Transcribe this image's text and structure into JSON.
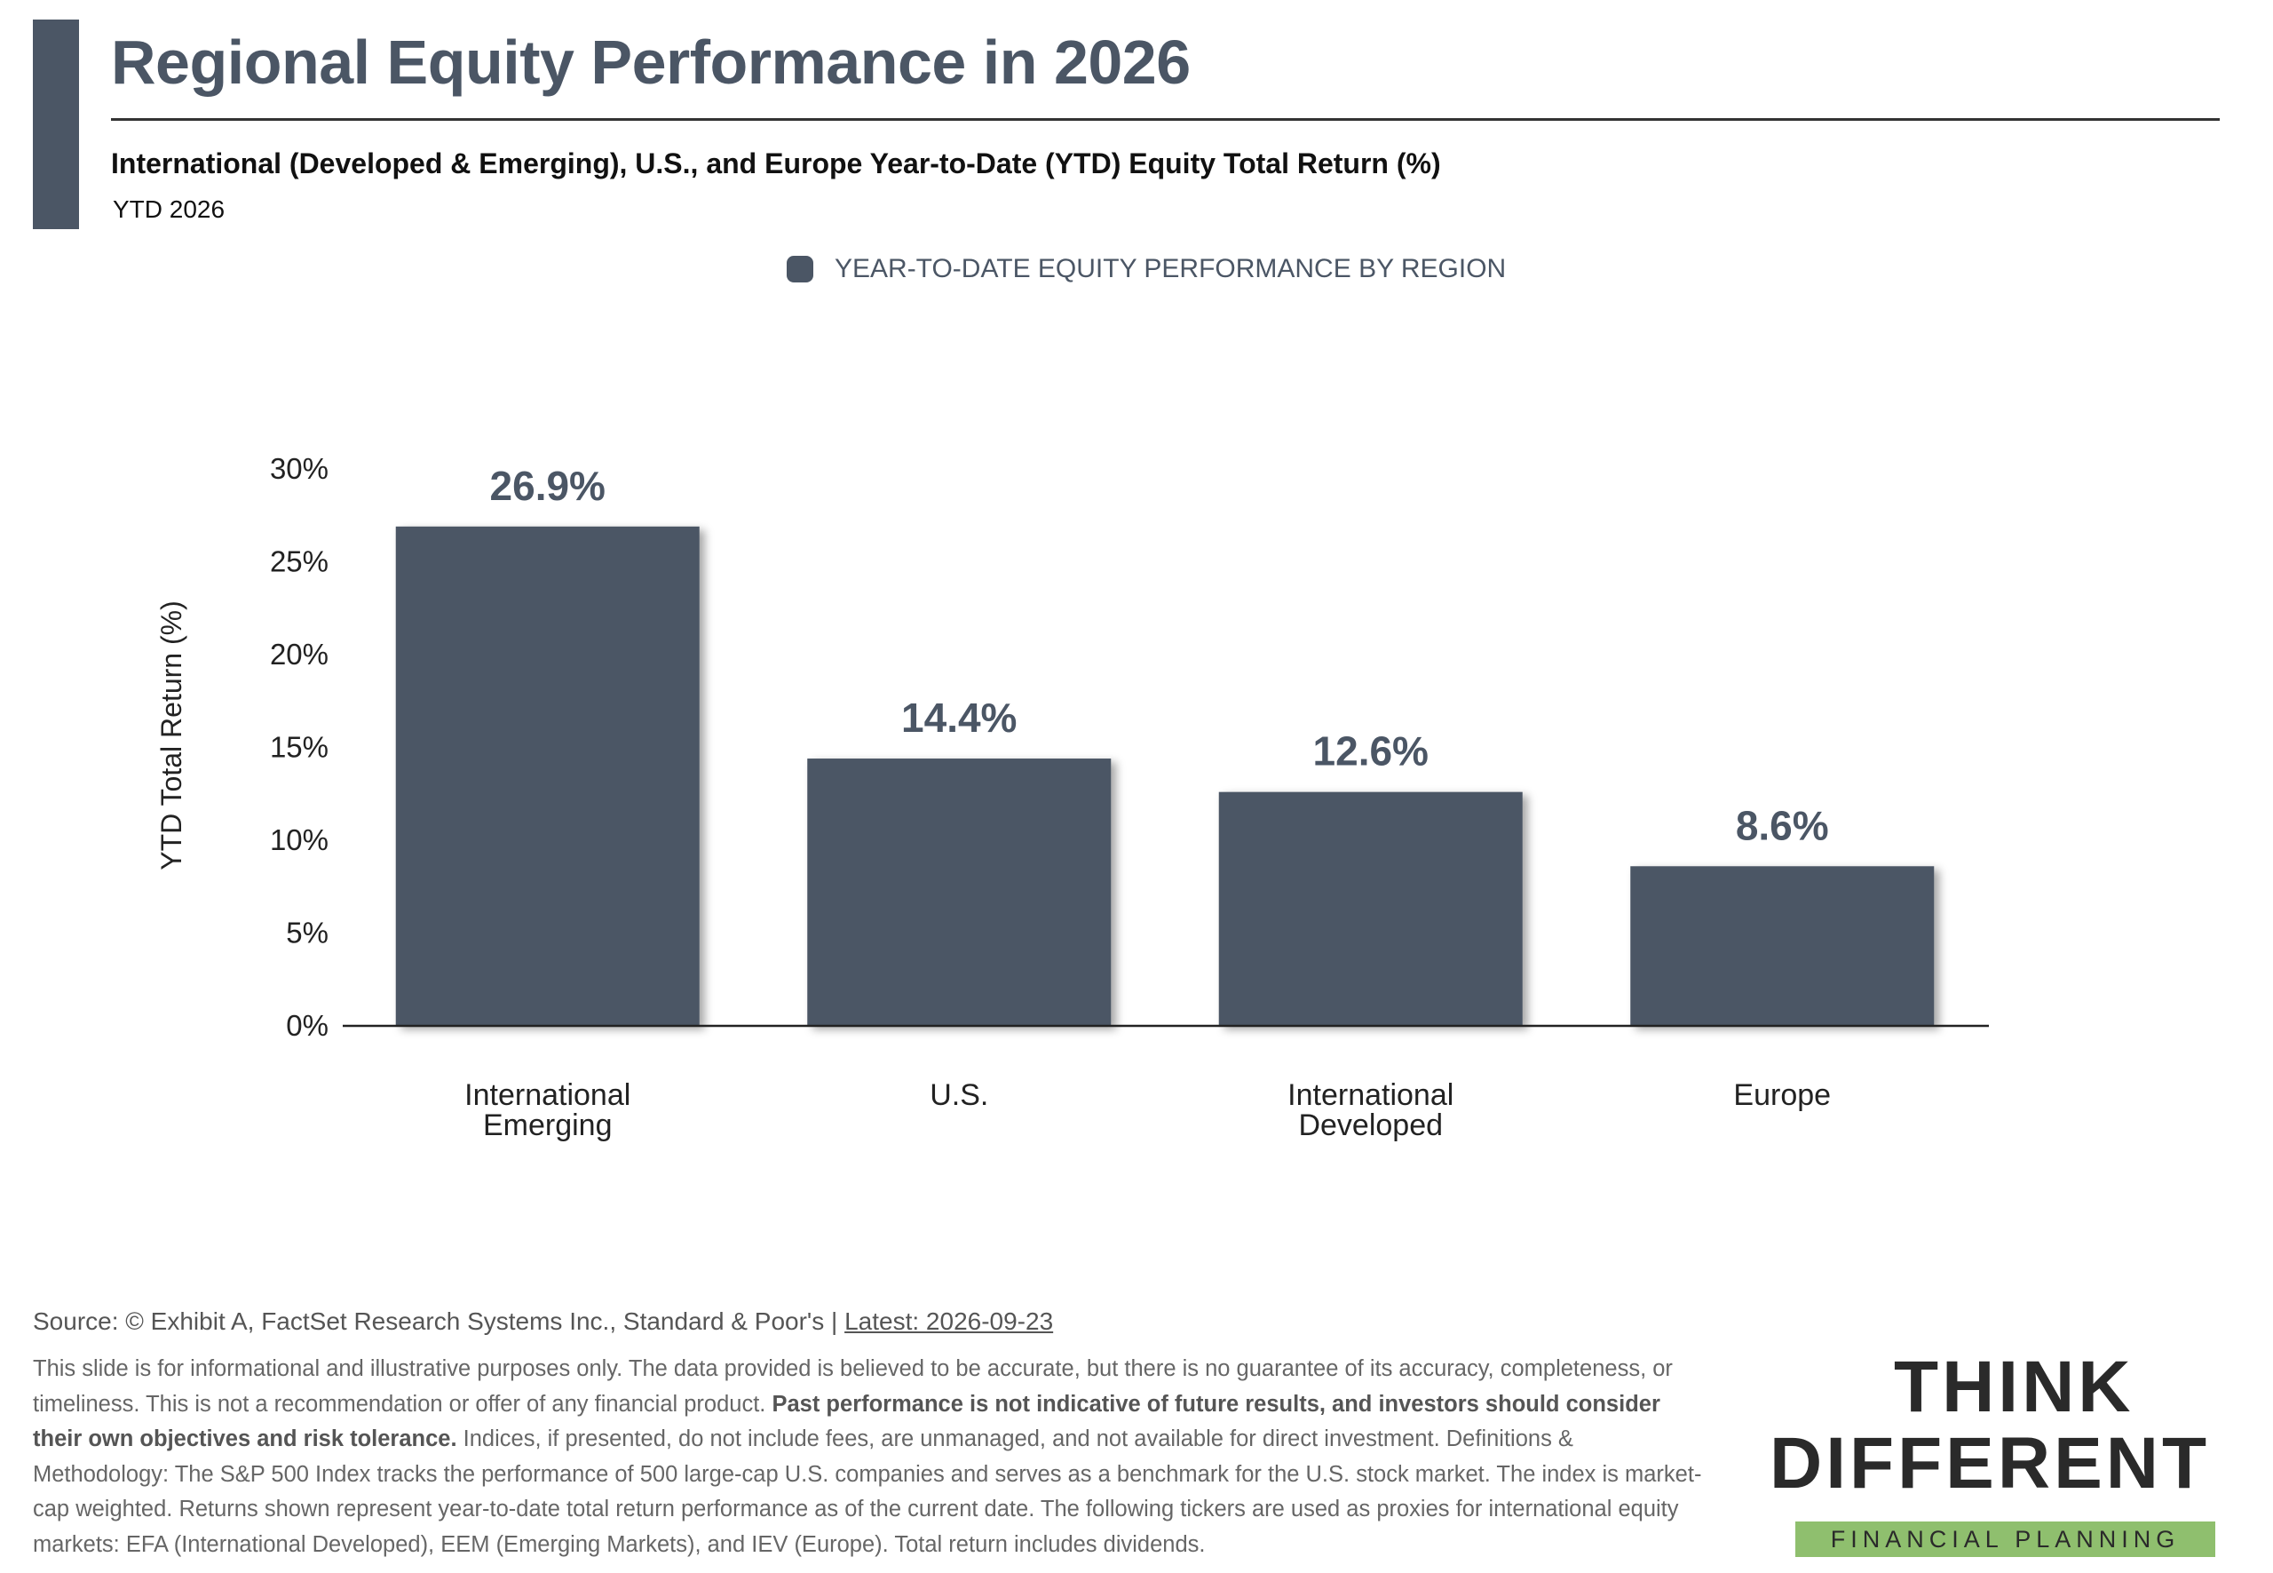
{
  "header": {
    "title": "Regional Equity Performance in 2026",
    "subtitle": "International (Developed & Emerging), U.S., and Europe Year-to-Date (YTD) Equity Total Return (%)",
    "period": "YTD 2026"
  },
  "legend": {
    "label": "YEAR-TO-DATE EQUITY PERFORMANCE BY REGION"
  },
  "colors": {
    "bar": "#4b5665",
    "accent": "#4b5665",
    "logo_green": "#8fbf6e"
  },
  "chart_data": {
    "type": "bar",
    "categories": [
      [
        "International",
        "Emerging"
      ],
      [
        "U.S."
      ],
      [
        "International",
        "Developed"
      ],
      [
        "Europe"
      ]
    ],
    "series": [
      {
        "name": "YEAR-TO-DATE EQUITY PERFORMANCE BY REGION",
        "values": [
          26.9,
          14.4,
          12.6,
          8.6
        ]
      }
    ],
    "data_labels": [
      "26.9%",
      "14.4%",
      "12.6%",
      "8.6%"
    ],
    "ylabel": "YTD Total Return (%)",
    "xlabel": "",
    "ylim": [
      0,
      30
    ],
    "yticks": [
      0,
      5,
      10,
      15,
      20,
      25,
      30
    ],
    "ytick_labels": [
      "0%",
      "5%",
      "10%",
      "15%",
      "20%",
      "25%",
      "30%"
    ],
    "grid": false,
    "legend_position": "top-center"
  },
  "footer": {
    "source": "Source: © Exhibit A, FactSet Research Systems Inc., Standard & Poor's | ",
    "latest": "Latest: 2026-09-23",
    "disclaimer_1": "This slide is for informational and illustrative purposes only. The data provided is believed to be accurate, but there is no guarantee of its accuracy, completeness, or timeliness. This is not a recommendation or offer of any financial product. ",
    "disclaimer_bold": "Past performance is not indicative of future results, and investors should consider their own objectives and risk tolerance.",
    "disclaimer_2": " Indices, if presented, do not include fees, are unmanaged, and not available for direct investment. Definitions & Methodology: The S&P 500 Index tracks the performance of 500 large-cap U.S. companies and serves as a benchmark for the U.S. stock market. The index is market-cap weighted. Returns shown represent year-to-date total return performance as of the current date. The following tickers are used as proxies for international equity markets: EFA (International Developed), EEM (Emerging Markets), and IEV (Europe). Total return includes dividends."
  },
  "logo": {
    "line1": "THINK",
    "line2": "DIFFERENT",
    "tagline": "FINANCIAL PLANNING"
  }
}
